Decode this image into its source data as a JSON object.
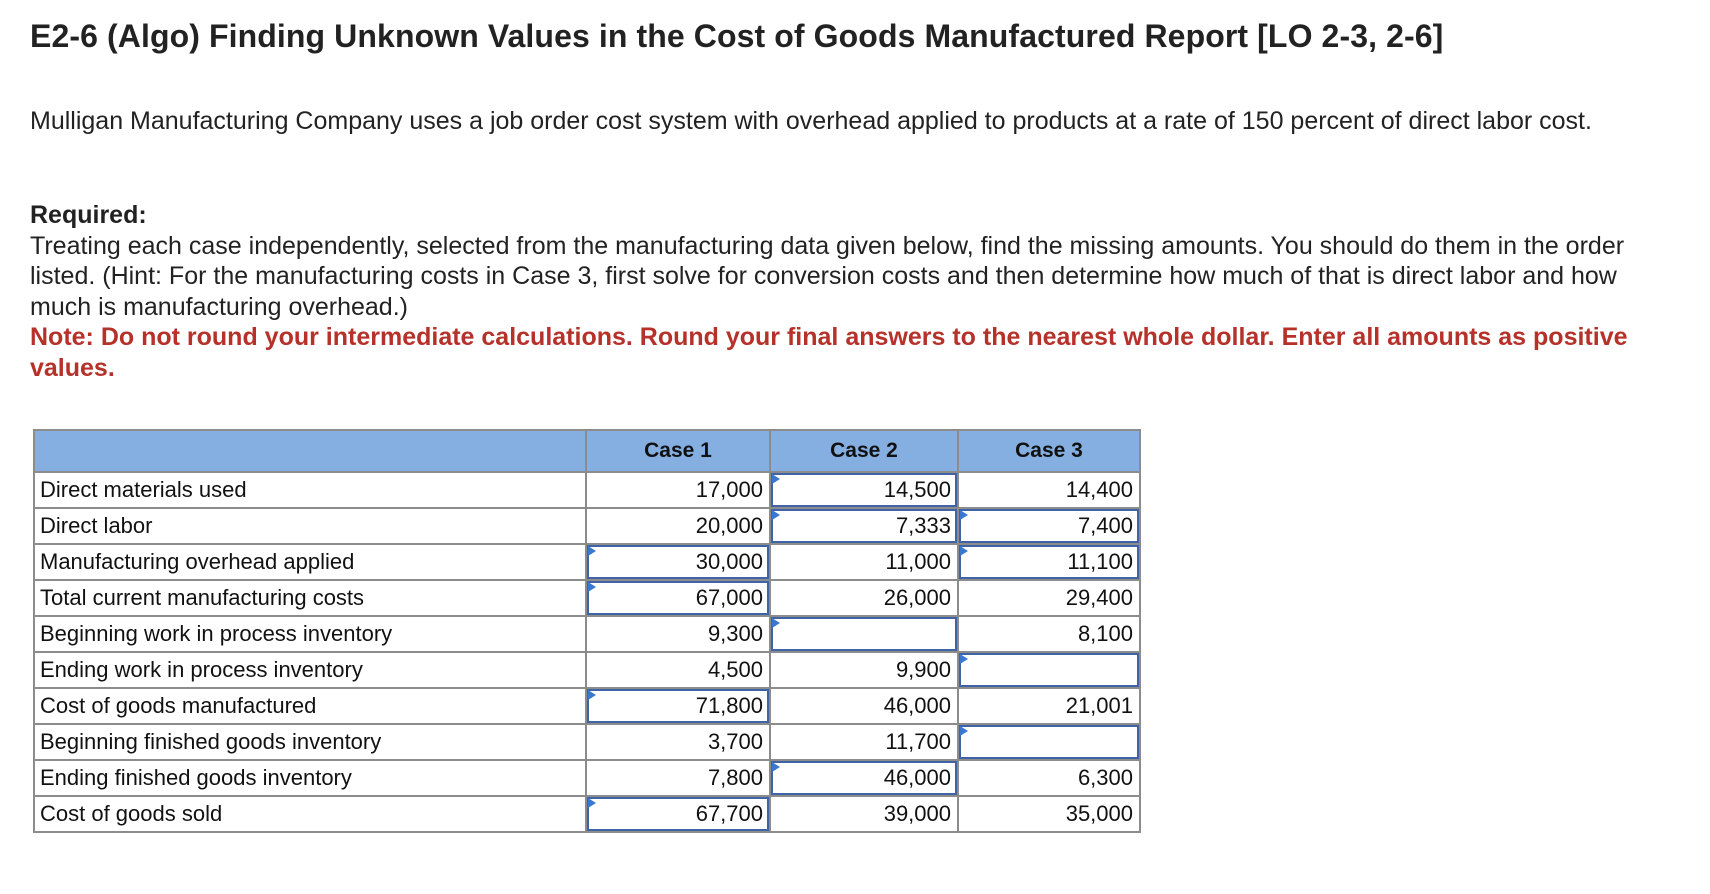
{
  "title": "E2-6 (Algo) Finding Unknown Values in the Cost of Goods Manufactured Report [LO 2-3, 2-6]",
  "intro": "Mulligan Manufacturing Company uses a job order cost system with overhead applied to products at a rate of 150 percent of direct labor cost.",
  "required": {
    "heading": "Required:",
    "text": "Treating each case independently, selected from the manufacturing data given below, find the missing amounts. You should do them in the order listed. (Hint: For the manufacturing costs in Case 3, first solve for conversion costs and then determine how much of that is direct labor and how much is manufacturing overhead.)",
    "note": "Note: Do not round your intermediate calculations. Round your final answers to the nearest whole dollar. Enter all amounts as positive values."
  },
  "table": {
    "headers": [
      "",
      "Case 1",
      "Case 2",
      "Case 3"
    ],
    "rows": [
      {
        "label": "Direct materials used",
        "cells": [
          {
            "value": "17,000",
            "input": false,
            "marker": false
          },
          {
            "value": "14,500",
            "input": true,
            "marker": true
          },
          {
            "value": "14,400",
            "input": false,
            "marker": false
          }
        ]
      },
      {
        "label": "Direct labor",
        "cells": [
          {
            "value": "20,000",
            "input": false,
            "marker": false
          },
          {
            "value": "7,333",
            "input": true,
            "marker": true
          },
          {
            "value": "7,400",
            "input": true,
            "marker": true
          }
        ]
      },
      {
        "label": "Manufacturing overhead applied",
        "cells": [
          {
            "value": "30,000",
            "input": true,
            "marker": true
          },
          {
            "value": "11,000",
            "input": false,
            "marker": false
          },
          {
            "value": "11,100",
            "input": true,
            "marker": true
          }
        ]
      },
      {
        "label": "Total current manufacturing costs",
        "cells": [
          {
            "value": "67,000",
            "input": true,
            "marker": true
          },
          {
            "value": "26,000",
            "input": false,
            "marker": false
          },
          {
            "value": "29,400",
            "input": false,
            "marker": false
          }
        ]
      },
      {
        "label": "Beginning work in process inventory",
        "cells": [
          {
            "value": "9,300",
            "input": false,
            "marker": false
          },
          {
            "value": "",
            "input": true,
            "marker": true
          },
          {
            "value": "8,100",
            "input": false,
            "marker": false
          }
        ]
      },
      {
        "label": "Ending work in process inventory",
        "cells": [
          {
            "value": "4,500",
            "input": false,
            "marker": false
          },
          {
            "value": "9,900",
            "input": false,
            "marker": false
          },
          {
            "value": "",
            "input": true,
            "marker": true
          }
        ]
      },
      {
        "label": "Cost of goods manufactured",
        "cells": [
          {
            "value": "71,800",
            "input": true,
            "marker": true
          },
          {
            "value": "46,000",
            "input": false,
            "marker": false
          },
          {
            "value": "21,001",
            "input": false,
            "marker": false
          }
        ]
      },
      {
        "label": "Beginning finished goods inventory",
        "cells": [
          {
            "value": "3,700",
            "input": false,
            "marker": false
          },
          {
            "value": "11,700",
            "input": false,
            "marker": false
          },
          {
            "value": "",
            "input": true,
            "marker": true
          }
        ]
      },
      {
        "label": "Ending finished goods inventory",
        "cells": [
          {
            "value": "7,800",
            "input": false,
            "marker": false
          },
          {
            "value": "46,000",
            "input": true,
            "marker": true
          },
          {
            "value": "6,300",
            "input": false,
            "marker": false
          }
        ]
      },
      {
        "label": "Cost of goods sold",
        "cells": [
          {
            "value": "67,700",
            "input": true,
            "marker": true
          },
          {
            "value": "39,000",
            "input": false,
            "marker": false
          },
          {
            "value": "35,000",
            "input": false,
            "marker": false
          }
        ]
      }
    ]
  },
  "colors": {
    "header_bg": "#85aee1",
    "note": "#b5312a",
    "input_border": "#3f63a7",
    "marker": "#3a78d0"
  }
}
